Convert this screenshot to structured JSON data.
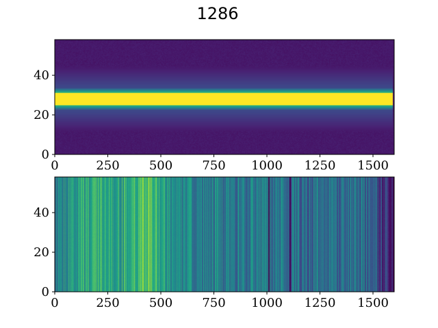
{
  "figure": {
    "title": "1286"
  },
  "chart_data": [
    {
      "type": "heatmap",
      "colormap": "viridis",
      "description_of_values": "2D spectral image: bright horizontal trace",
      "xlim": [
        0,
        1600
      ],
      "ylim": [
        0,
        58
      ],
      "xticks": [
        0,
        250,
        500,
        750,
        1000,
        1250,
        1500
      ],
      "yticks": [
        0,
        20,
        40
      ],
      "xtick_labels": [
        "0",
        "250",
        "500",
        "750",
        "1000",
        "1250",
        "1500"
      ],
      "ytick_labels": [
        "0",
        "20",
        "40"
      ],
      "trace": {
        "center_y": 28,
        "half_width": 3,
        "start_x": 0,
        "end_x": 1595,
        "intensity": 1.0
      },
      "background_intensity": 0.05
    },
    {
      "type": "heatmap",
      "colormap": "viridis",
      "description_of_values": "column-normalized image: vertical stripes varying along x",
      "xlim": [
        0,
        1600
      ],
      "ylim": [
        0,
        58
      ],
      "xticks": [
        0,
        250,
        500,
        750,
        1000,
        1250,
        1500
      ],
      "yticks": [
        0,
        20,
        40
      ],
      "xtick_labels": [
        "0",
        "250",
        "500",
        "750",
        "1000",
        "1250",
        "1500"
      ],
      "ytick_labels": [
        "0",
        "20",
        "40"
      ],
      "dark_columns": [
        1010,
        1110
      ],
      "column_intensity_profile": [
        {
          "x": 0,
          "v": 0.45
        },
        {
          "x": 100,
          "v": 0.55
        },
        {
          "x": 200,
          "v": 0.62
        },
        {
          "x": 300,
          "v": 0.58
        },
        {
          "x": 400,
          "v": 0.72
        },
        {
          "x": 450,
          "v": 0.75
        },
        {
          "x": 530,
          "v": 0.55
        },
        {
          "x": 600,
          "v": 0.45
        },
        {
          "x": 750,
          "v": 0.42
        },
        {
          "x": 900,
          "v": 0.42
        },
        {
          "x": 1000,
          "v": 0.4
        },
        {
          "x": 1100,
          "v": 0.38
        },
        {
          "x": 1300,
          "v": 0.35
        },
        {
          "x": 1450,
          "v": 0.3
        },
        {
          "x": 1500,
          "v": 0.32
        },
        {
          "x": 1550,
          "v": 0.15
        },
        {
          "x": 1600,
          "v": 0.05
        }
      ]
    }
  ]
}
